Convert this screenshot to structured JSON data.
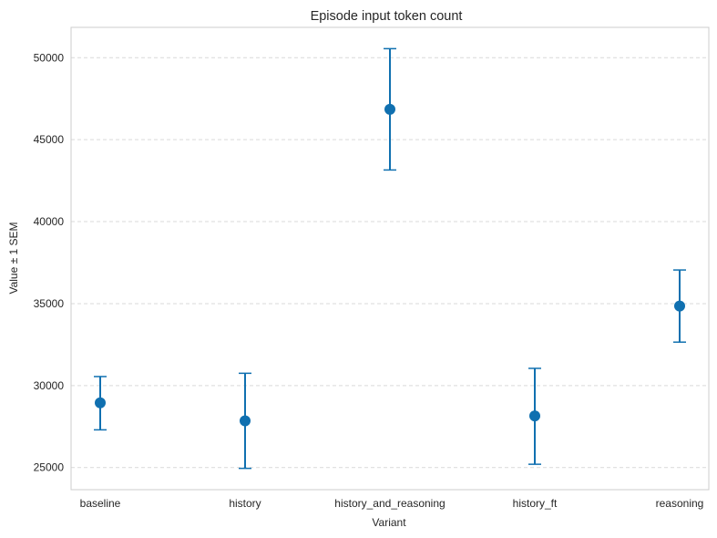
{
  "chart_data": {
    "type": "scatter",
    "title": "Episode input token count",
    "xlabel": "Variant",
    "ylabel": "Value ± 1 SEM",
    "categories": [
      "baseline",
      "history",
      "history_and_reasoning",
      "history_ft",
      "reasoning"
    ],
    "series": [
      {
        "values": [
          28950,
          27850,
          46850,
          28150,
          34850
        ],
        "error_low": [
          27300,
          24950,
          43150,
          25200,
          32650
        ],
        "error_high": [
          30550,
          30750,
          50550,
          31050,
          37050
        ]
      }
    ],
    "yticks": [
      25000,
      30000,
      35000,
      40000,
      45000,
      50000
    ],
    "ylim": [
      23650,
      51850
    ],
    "grid": true,
    "color": "#1070b0"
  }
}
